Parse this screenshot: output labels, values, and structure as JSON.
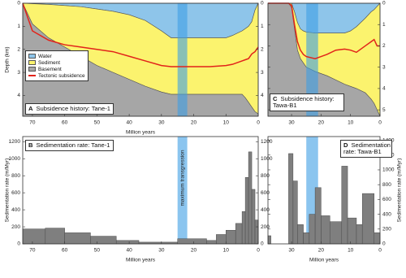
{
  "chart_data": [
    {
      "type": "area",
      "panel": "A",
      "title": "Subsidence history: Tane-1",
      "x_label": "Million years",
      "y_label": "Depth (km)",
      "x": [
        73,
        70,
        65,
        60,
        55,
        50,
        45,
        40,
        35,
        30,
        27,
        20,
        15,
        10,
        8,
        5,
        4,
        3,
        2,
        1,
        0
      ],
      "series": [
        {
          "name": "Water",
          "color": "#8ec5ea",
          "values": [
            0,
            0.02,
            0.05,
            0.1,
            0.15,
            0.25,
            0.35,
            0.5,
            0.75,
            1.2,
            1.5,
            1.5,
            1.5,
            1.5,
            1.4,
            1.2,
            1.1,
            1.0,
            0.8,
            0.3,
            0
          ]
        },
        {
          "name": "Sediment",
          "color": "#fbf36e",
          "values": [
            0,
            0.9,
            1.5,
            1.9,
            2.3,
            2.7,
            3.0,
            3.3,
            3.6,
            3.85,
            3.95,
            3.95,
            3.95,
            3.95,
            3.95,
            3.95,
            4.1,
            4.3,
            4.5,
            4.7,
            4.8
          ]
        },
        {
          "name": "Basement",
          "color": "#a6a6a6"
        },
        {
          "name": "Tectonic subsidence",
          "color": "#e2231a",
          "values": [
            0,
            1.2,
            1.6,
            1.8,
            1.9,
            2.0,
            2.1,
            2.3,
            2.5,
            2.7,
            2.75,
            2.75,
            2.75,
            2.7,
            2.65,
            2.5,
            2.45,
            2.4,
            2.2,
            2.1,
            1.9
          ]
        }
      ],
      "band": [
        25,
        22
      ],
      "band_color": "#3d9ee5",
      "xlim": [
        73,
        0
      ],
      "xticks": [
        70,
        60,
        50,
        40,
        30,
        20,
        10,
        0
      ],
      "ylim": [
        0,
        4.9
      ],
      "yticks": [
        0,
        1,
        2,
        3,
        4
      ],
      "y_inverted": true
    },
    {
      "type": "area",
      "panel": "C",
      "title": "Subsidence history: Tawa-B1",
      "x": [
        38,
        31,
        30,
        29,
        28,
        27,
        26,
        25,
        22,
        20,
        18,
        15,
        12,
        10,
        8,
        5,
        3,
        2,
        1,
        0
      ],
      "series": [
        {
          "color": "#8ec5ea",
          "values": [
            0,
            0,
            0,
            0.4,
            0.9,
            1.2,
            1.3,
            1.35,
            1.4,
            1.4,
            1.4,
            1.4,
            1.4,
            1.3,
            1.1,
            0.7,
            0.4,
            0.3,
            0.15,
            0
          ]
        },
        {
          "color": "#fbf36e",
          "values": [
            0,
            0,
            0.2,
            1.2,
            2.2,
            2.6,
            2.8,
            3.0,
            3.2,
            3.3,
            3.4,
            3.6,
            3.8,
            3.9,
            4.0,
            4.2,
            4.5,
            4.7,
            5.0,
            5.3
          ]
        },
        {
          "color": "#a6a6a6"
        },
        {
          "color": "#e2231a",
          "values": [
            0,
            0,
            0.1,
            1.0,
            1.8,
            2.2,
            2.4,
            2.5,
            2.6,
            2.5,
            2.4,
            2.2,
            2.15,
            2.2,
            2.3,
            2.0,
            1.8,
            1.7,
            2.0,
            2.0
          ]
        }
      ],
      "band": [
        25,
        21
      ],
      "band_color": "#3d9ee5",
      "xlim": [
        38,
        0
      ],
      "xticks": [
        30,
        20,
        10,
        0
      ],
      "ylim": [
        0,
        5.3
      ],
      "yticks": [
        0,
        1,
        2,
        3,
        4,
        5
      ],
      "y_inverted": true
    },
    {
      "type": "histogram",
      "panel": "B",
      "title": "Sedimentation rate: Tane-1",
      "x_label": "Million years",
      "y_label": "Sedimentation rate (m/Myr)",
      "annotation": "maximum transgression",
      "bins": [
        73,
        66,
        60,
        52,
        44,
        37,
        25,
        16,
        13,
        10,
        7,
        5,
        4,
        3,
        2,
        1,
        0
      ],
      "counts": [
        175,
        185,
        130,
        90,
        40,
        20,
        60,
        40,
        110,
        160,
        240,
        380,
        780,
        1080,
        640,
        280
      ],
      "color": "#7f7f7f",
      "band": [
        25,
        22
      ],
      "band_color": "#3d9ee5",
      "xlim": [
        73,
        0
      ],
      "xticks": [
        70,
        60,
        50,
        40,
        30,
        20,
        10,
        0
      ],
      "ylim": [
        0,
        1260
      ],
      "yticks": [
        0,
        200,
        400,
        600,
        800,
        1000,
        1200
      ]
    },
    {
      "type": "histogram",
      "panel": "D",
      "title": "Sedimentation rate: Tawa-B1",
      "x_label": "Million years",
      "y_label": "Sedimentation rate (m/Myr)",
      "bins": [
        38,
        37,
        31,
        29.5,
        28,
        26,
        24,
        22,
        20,
        17,
        13,
        11,
        8,
        6,
        2,
        0
      ],
      "counts": [
        110,
        0,
        1220,
        850,
        260,
        150,
        400,
        760,
        380,
        300,
        1050,
        350,
        260,
        680,
        150
      ],
      "color": "#7f7f7f",
      "band": [
        25,
        21
      ],
      "band_color": "#3d9ee5",
      "xlim": [
        38,
        0
      ],
      "xticks": [
        30,
        20,
        10,
        0
      ],
      "ylim": [
        0,
        1450
      ],
      "yticks": [
        0,
        200,
        400,
        600,
        800,
        1000,
        1200,
        1400
      ]
    }
  ]
}
